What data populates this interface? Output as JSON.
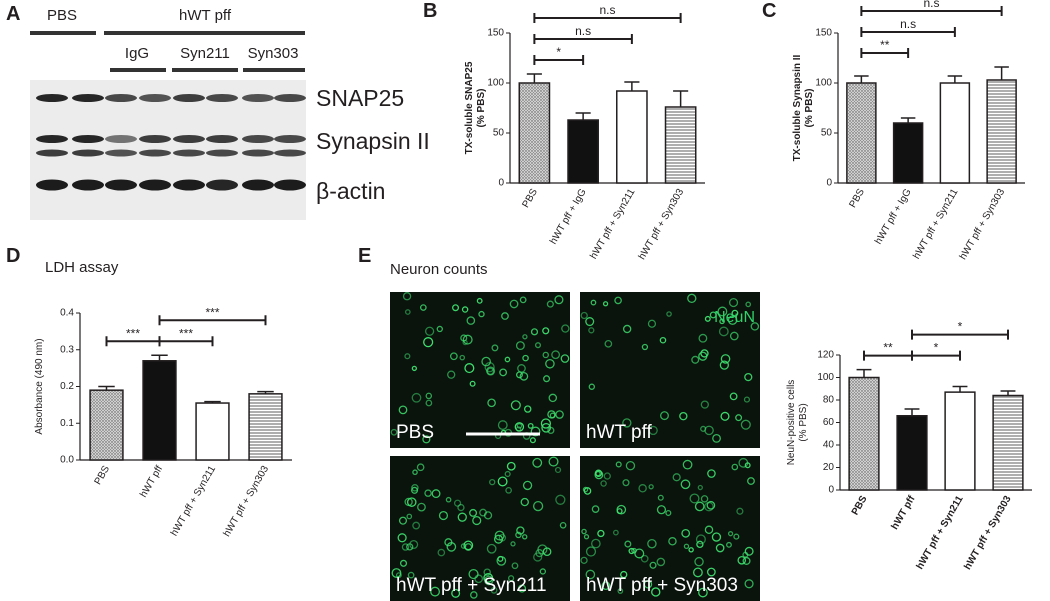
{
  "panel_labels": [
    "A",
    "B",
    "C",
    "D",
    "E"
  ],
  "blot": {
    "groups": [
      "PBS",
      "hWT pff"
    ],
    "subgroups": [
      "IgG",
      "Syn211",
      "Syn303"
    ],
    "bands": [
      "SNAP25",
      "Synapsin II",
      "β-actin"
    ]
  },
  "neuron_counts": {
    "title": "Neuron counts",
    "stain": "NeuN",
    "images": [
      "PBS",
      "hWT pff",
      "hWT pff + Syn211",
      "hWT pff + Syn303"
    ]
  },
  "chart_data": [
    {
      "type": "bar",
      "ylabel": [
        "TX-soluble SNAP25",
        "(% PBS)"
      ],
      "categories": [
        "PBS",
        "hWT pff + IgG",
        "hWT pff + Syn211",
        "hWT pff + Syn303"
      ],
      "values": [
        100,
        63,
        92,
        76
      ],
      "errors": [
        9,
        7,
        9,
        16
      ],
      "fills": [
        "dots",
        "black",
        "white",
        "stripes"
      ],
      "ylim": [
        0,
        150
      ],
      "yticks": [
        0,
        50,
        100,
        150
      ],
      "significance": [
        {
          "label": "*",
          "pair": [
            0,
            1
          ]
        },
        {
          "label": "n.s",
          "pair": [
            0,
            2
          ]
        },
        {
          "label": "n.s",
          "pair": [
            0,
            3
          ]
        }
      ]
    },
    {
      "type": "bar",
      "ylabel": [
        "TX-soluble Synapsin II",
        "(% PBS)"
      ],
      "categories": [
        "PBS",
        "hWT pff + IgG",
        "hWT pff + Syn211",
        "hWT pff + Syn303"
      ],
      "values": [
        100,
        60,
        100,
        103
      ],
      "errors": [
        7,
        5,
        7,
        13
      ],
      "fills": [
        "dots",
        "black",
        "white",
        "stripes"
      ],
      "ylim": [
        0,
        150
      ],
      "yticks": [
        0,
        50,
        100,
        150
      ],
      "significance": [
        {
          "label": "**",
          "pair": [
            0,
            1
          ]
        },
        {
          "label": "n.s",
          "pair": [
            0,
            2
          ]
        },
        {
          "label": "n.s",
          "pair": [
            0,
            3
          ]
        }
      ]
    },
    {
      "type": "bar",
      "title": "LDH assay",
      "ylabel": [
        "Absorbance (490 nm)"
      ],
      "categories": [
        "PBS",
        "hWT pff",
        "hWT pff + Syn211",
        "hWT pff + Syn303"
      ],
      "values": [
        0.19,
        0.27,
        0.155,
        0.18
      ],
      "errors": [
        0.01,
        0.015,
        0.004,
        0.006
      ],
      "fills": [
        "dots",
        "black",
        "white",
        "stripes"
      ],
      "ylim": [
        0,
        0.4
      ],
      "yticks": [
        {
          "value": 0,
          "label": "0.0"
        },
        0.1,
        0.2,
        0.3,
        0.4
      ],
      "significance": [
        {
          "label": "***",
          "pair": [
            0,
            1
          ]
        },
        {
          "label": "***",
          "pair": [
            1,
            2
          ]
        },
        {
          "label": "***",
          "pair": [
            1,
            3
          ]
        }
      ]
    },
    {
      "type": "bar",
      "ylabel": [
        "NeuN-positive cells",
        "(% PBS)"
      ],
      "categories": [
        "PBS",
        "hWT pff",
        "hWT pff + Syn211",
        "hWT pff + Syn303"
      ],
      "values": [
        100,
        66,
        87,
        84
      ],
      "errors": [
        7,
        6,
        5,
        4
      ],
      "fills": [
        "dots",
        "black",
        "white",
        "stripes"
      ],
      "ylim": [
        0,
        120
      ],
      "yticks": [
        0,
        20,
        40,
        60,
        80,
        100,
        120
      ],
      "significance": [
        {
          "label": "**",
          "pair": [
            0,
            1
          ]
        },
        {
          "label": "*",
          "pair": [
            1,
            2
          ]
        },
        {
          "label": "*",
          "pair": [
            1,
            3
          ]
        }
      ]
    }
  ]
}
